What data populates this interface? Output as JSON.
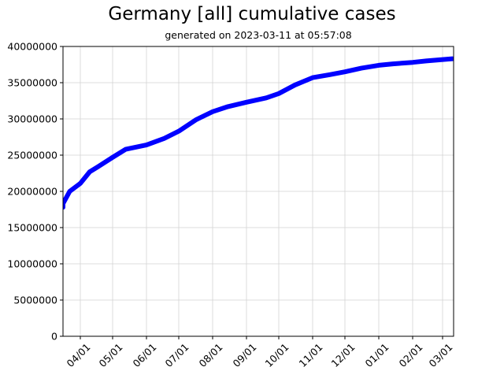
{
  "title": "Germany [all] cumulative cases",
  "subtitle": "generated on 2023-03-11 at 05:57:08",
  "colors": {
    "line": "#0000ff",
    "grid": "#d3d3d3",
    "axis": "#000000"
  },
  "chart_data": {
    "type": "line",
    "title": "Germany [all] cumulative cases",
    "subtitle": "generated on 2023-03-11 at 05:57:08",
    "xlabel": "",
    "ylabel": "",
    "ylim": [
      0,
      40000000
    ],
    "grid": true,
    "legend": null,
    "x_tick_labels": [
      "04/01",
      "05/01",
      "06/01",
      "07/01",
      "08/01",
      "09/01",
      "10/01",
      "11/01",
      "12/01",
      "01/01",
      "02/01",
      "03/01"
    ],
    "y_tick_labels": [
      "0",
      "5000000",
      "10000000",
      "15000000",
      "20000000",
      "25000000",
      "30000000",
      "35000000",
      "40000000"
    ],
    "series": [
      {
        "name": "cumulative cases",
        "marker": "circle",
        "x": [
          "03/11",
          "03/15",
          "03/22",
          "04/01",
          "04/10",
          "04/18",
          "05/01",
          "05/13",
          "06/01",
          "06/18",
          "07/01",
          "07/17",
          "08/01",
          "08/15",
          "09/01",
          "09/20",
          "10/01",
          "10/16",
          "11/01",
          "11/17",
          "12/01",
          "12/16",
          "01/01",
          "01/14",
          "02/01",
          "02/15",
          "03/10"
        ],
        "values": [
          17800000,
          18300000,
          20000000,
          21100000,
          22700000,
          23400000,
          24700000,
          25800000,
          26400000,
          27300000,
          28300000,
          29900000,
          31000000,
          31700000,
          32300000,
          32900000,
          33500000,
          34700000,
          35700000,
          36100000,
          36500000,
          37000000,
          37400000,
          37600000,
          37800000,
          38000000,
          38300000
        ]
      }
    ]
  }
}
